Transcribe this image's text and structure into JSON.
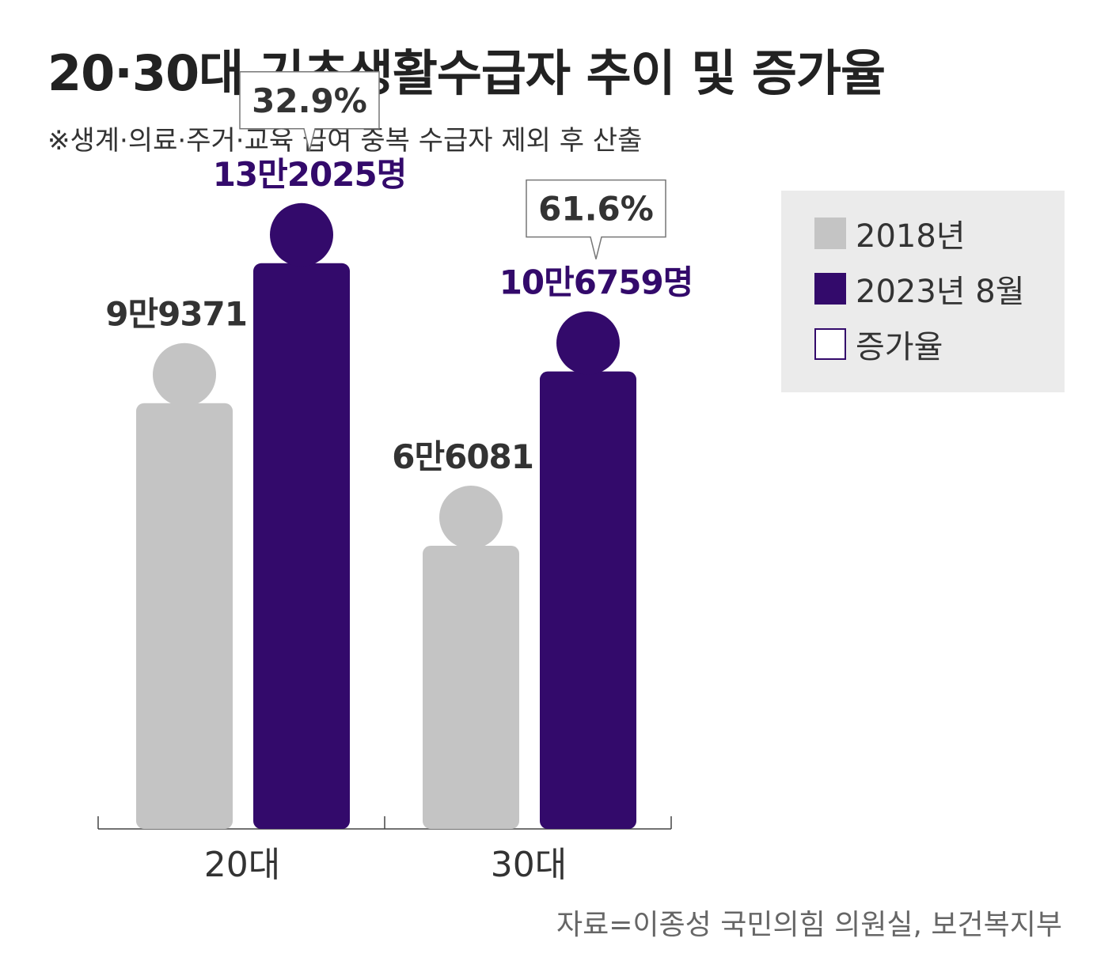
{
  "title": "20·30대 기초생활수급자 추이 및 증가율",
  "subtitle": "※생계·의료·주거·교육 급여 중복 수급자 제외 후 산출",
  "source": "자료=이종성 국민의힘 의원실, 보건복지부",
  "legend": {
    "placement": "top-right",
    "items": [
      {
        "label": "2018년",
        "color": "#c4c4c4",
        "style": "filled"
      },
      {
        "label": "2023년 8월",
        "color": "#330a6b",
        "style": "filled"
      },
      {
        "label": "증가율",
        "color": "#330a6b",
        "style": "outline"
      }
    ]
  },
  "chart_data": {
    "type": "bar",
    "categories": [
      "20대",
      "30대"
    ],
    "series": [
      {
        "name": "2018년",
        "color": "#c4c4c4",
        "values": [
          99371,
          66081
        ],
        "labels": [
          "9만9371",
          "6만6081"
        ]
      },
      {
        "name": "2023년 8월",
        "color": "#330a6b",
        "values": [
          132025,
          106759
        ],
        "labels": [
          "13만2025명",
          "10만6759명"
        ]
      }
    ],
    "growth_rates": {
      "name": "증가율",
      "values": [
        32.9,
        61.6
      ],
      "labels": [
        "32.9%",
        "61.6%"
      ]
    },
    "ylim": [
      0,
      175000
    ],
    "grid": false,
    "xlabel": "",
    "ylabel": ""
  }
}
